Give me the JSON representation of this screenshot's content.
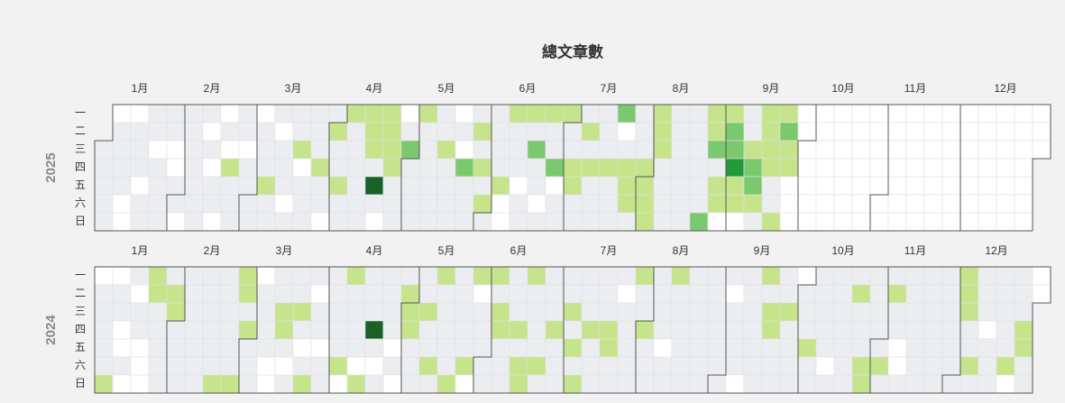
{
  "chart_data": {
    "type": "calendar_heatmap",
    "title": "總文章數",
    "months": [
      "1月",
      "2月",
      "3月",
      "4月",
      "5月",
      "6月",
      "7月",
      "8月",
      "9月",
      "10月",
      "11月",
      "12月"
    ],
    "weekdays": [
      "一",
      "二",
      "三",
      "四",
      "五",
      "六",
      "日"
    ],
    "level_colors": [
      "#ebedf0",
      "#c6e48b",
      "#7bc96f",
      "#239a3b",
      "#196127"
    ],
    "empty_color": "#ffffff",
    "calendars": [
      {
        "year": 2025,
        "values": [
          0,
          0,
          0,
          0,
          0,
          null,
          0,
          0,
          0,
          0,
          null,
          null,
          null,
          0,
          0,
          0,
          null,
          0,
          0,
          0,
          0,
          null,
          0,
          0,
          0,
          0,
          0,
          0,
          null,
          null,
          0,
          0,
          null,
          0,
          0,
          0,
          0,
          0,
          0,
          0,
          0,
          null,
          0,
          null,
          0,
          0,
          null,
          null,
          0,
          null,
          1,
          0,
          0,
          0,
          0,
          0,
          null,
          0,
          0,
          0,
          0,
          null,
          0,
          0,
          0,
          1,
          0,
          0,
          0,
          null,
          0,
          0,
          0,
          null,
          0,
          0,
          0,
          1,
          null,
          0,
          0,
          0,
          0,
          0,
          0,
          1,
          0,
          0,
          null,
          0,
          1,
          0,
          0,
          1,
          0,
          0,
          1,
          0,
          0,
          0,
          0,
          0,
          0,
          1,
          1,
          1,
          0,
          4,
          0,
          null,
          1,
          1,
          1,
          1,
          0,
          0,
          0,
          null,
          0,
          2,
          0,
          0,
          0,
          0,
          1,
          0,
          0,
          0,
          0,
          0,
          0,
          0,
          0,
          1,
          0,
          0,
          0,
          0,
          null,
          0,
          null,
          2,
          0,
          0,
          0,
          0,
          1,
          0,
          1,
          0,
          1,
          0,
          0,
          0,
          0,
          0,
          1,
          null,
          null,
          1,
          0,
          0,
          0,
          null,
          0,
          0,
          1,
          0,
          2,
          0,
          0,
          null,
          0,
          1,
          0,
          0,
          2,
          null,
          0,
          0,
          1,
          0,
          0,
          1,
          1,
          0,
          0,
          0,
          1,
          0,
          1,
          0,
          0,
          0,
          0,
          0,
          0,
          1,
          0,
          0,
          0,
          2,
          null,
          0,
          1,
          1,
          1,
          0,
          0,
          0,
          0,
          1,
          1,
          1,
          1,
          1,
          1,
          1,
          0,
          0,
          0,
          0,
          0,
          0,
          0,
          0,
          0,
          0,
          0,
          0,
          0,
          0,
          0,
          0,
          0,
          2,
          1,
          1,
          2,
          0,
          1,
          1,
          null,
          1,
          2,
          2,
          3,
          1,
          1,
          null,
          0,
          0,
          1,
          2,
          2,
          1,
          0,
          1,
          1,
          1,
          1,
          0,
          0,
          1,
          1,
          2,
          1,
          1
        ]
      },
      {
        "year": 2024,
        "values": [
          null,
          0,
          0,
          0,
          0,
          0,
          1,
          null,
          0,
          0,
          null,
          null,
          0,
          null,
          0,
          null,
          0,
          0,
          null,
          null,
          null,
          1,
          1,
          0,
          0,
          0,
          0,
          0,
          0,
          1,
          1,
          0,
          0,
          0,
          0,
          0,
          0,
          0,
          0,
          0,
          0,
          0,
          0,
          0,
          0,
          0,
          0,
          0,
          1,
          0,
          0,
          0,
          0,
          0,
          0,
          1,
          1,
          1,
          0,
          1,
          0,
          0,
          0,
          null,
          0,
          0,
          0,
          0,
          null,
          null,
          0,
          0,
          1,
          1,
          0,
          null,
          0,
          0,
          0,
          1,
          0,
          null,
          0,
          1,
          0,
          null,
          0,
          0,
          null,
          0,
          0,
          0,
          0,
          0,
          0,
          0,
          1,
          null,
          1,
          0,
          0,
          0,
          0,
          null,
          1,
          0,
          0,
          0,
          4,
          0,
          null,
          0,
          0,
          0,
          0,
          0,
          null,
          0,
          null,
          0,
          1,
          1,
          1,
          0,
          0,
          0,
          0,
          0,
          1,
          0,
          0,
          1,
          0,
          1,
          0,
          0,
          0,
          0,
          0,
          1,
          0,
          0,
          0,
          0,
          0,
          1,
          null,
          1,
          null,
          0,
          0,
          0,
          0,
          0,
          1,
          0,
          1,
          1,
          0,
          0,
          0,
          0,
          0,
          0,
          1,
          0,
          1,
          1,
          1,
          0,
          0,
          0,
          0,
          1,
          0,
          0,
          0,
          0,
          1,
          0,
          0,
          0,
          0,
          0,
          1,
          0,
          1,
          0,
          1,
          0,
          0,
          0,
          1,
          0,
          0,
          0,
          0,
          0,
          0,
          1,
          1,
          0,
          0,
          0,
          null,
          0,
          0,
          0,
          0,
          0,
          1,
          0,
          0,
          1,
          0,
          0,
          0,
          0,
          0,
          0,
          0,
          null,
          0,
          0,
          1,
          0,
          0,
          0,
          0,
          0,
          0,
          0,
          0,
          0,
          0,
          0,
          0,
          0,
          0,
          0,
          0,
          0,
          0,
          0,
          0,
          0,
          null,
          0,
          0,
          0,
          0,
          null,
          0,
          0,
          0,
          0,
          0,
          0,
          0,
          1,
          0,
          1,
          1,
          0,
          0,
          0,
          0,
          0,
          1,
          0,
          0,
          0,
          0,
          null,
          0,
          0,
          0,
          1,
          0,
          0,
          0,
          0,
          0,
          0,
          0,
          null,
          0,
          0,
          0,
          0,
          0,
          0,
          0,
          0,
          0,
          1,
          0,
          0,
          0,
          1,
          1,
          0,
          0,
          0,
          0,
          0,
          1,
          0,
          0,
          1,
          0,
          0,
          null,
          null,
          0,
          0,
          0,
          0,
          0,
          0,
          0,
          0,
          0,
          0,
          0,
          0,
          0,
          0,
          0,
          0,
          0,
          0,
          0,
          0,
          0,
          0,
          1,
          1,
          1,
          0,
          0,
          1,
          0,
          0,
          0,
          0,
          null,
          0,
          0,
          0,
          0,
          0,
          0,
          0,
          0,
          1,
          null,
          0,
          0,
          0,
          1,
          1,
          0,
          0,
          null,
          null
        ]
      }
    ]
  }
}
